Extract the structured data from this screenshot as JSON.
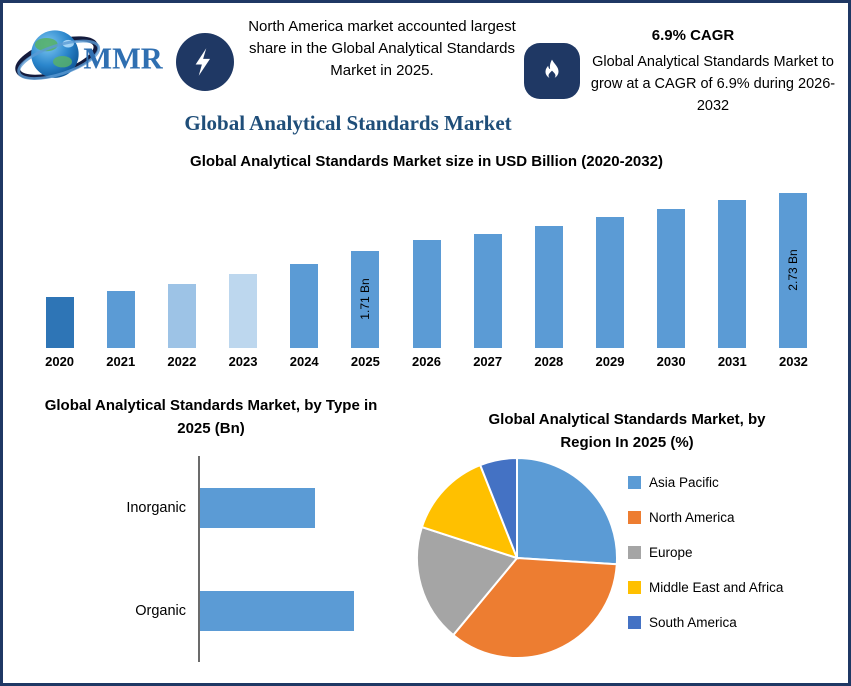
{
  "colors": {
    "navy": "#1f3864",
    "title_blue": "#1f4e79",
    "bar_blue": "#5b9bd5"
  },
  "header": {
    "logo": {
      "text": "MMR"
    },
    "highlight_icon": "lightning-icon",
    "highlight_text": "North America market accounted largest share in the Global Analytical Standards Market in 2025.",
    "title": "Global Analytical Standards Market",
    "cagr_icon": "flame-icon",
    "cagr_headline": "6.9% CAGR",
    "cagr_text": "Global Analytical Standards Market to grow at a CAGR of 6.9% during 2026-2032"
  },
  "chart_data": [
    {
      "id": "market-size-bars",
      "type": "bar",
      "title": "Global Analytical Standards Market size in USD Billion (2020-2032)",
      "categories": [
        "2020",
        "2021",
        "2022",
        "2023",
        "2024",
        "2025",
        "2026",
        "2027",
        "2028",
        "2029",
        "2030",
        "2031",
        "2032"
      ],
      "values": [
        0.9,
        1.0,
        1.12,
        1.3,
        1.48,
        1.71,
        1.9,
        2.0,
        2.15,
        2.3,
        2.45,
        2.6,
        2.73
      ],
      "unit": "USD Billion",
      "ylim": [
        0,
        2.9
      ],
      "bar_colors": [
        "#2e75b6",
        "#5b9bd5",
        "#9dc3e6",
        "#bdd7ee",
        "#5b9bd5",
        "#5b9bd5",
        "#5b9bd5",
        "#5b9bd5",
        "#5b9bd5",
        "#5b9bd5",
        "#5b9bd5",
        "#5b9bd5",
        "#5b9bd5"
      ],
      "data_labels": {
        "2025": "1.71 Bn",
        "2032": "2.73 Bn"
      },
      "grid": false,
      "legend": "none"
    },
    {
      "id": "type-bars",
      "type": "bar",
      "orientation": "horizontal",
      "title": "Global Analytical Standards Market, by Type in 2025 (Bn)",
      "categories": [
        "Inorganic",
        "Organic"
      ],
      "values": [
        0.73,
        0.98
      ],
      "xlim": [
        0,
        1.3
      ],
      "bar_color": "#5b9bd5",
      "grid": false,
      "legend": "none"
    },
    {
      "id": "region-pie",
      "type": "pie",
      "title": "Global Analytical Standards Market, by Region In 2025 (%)",
      "labels": [
        "Asia Pacific",
        "North America",
        "Europe",
        "Middle East and Africa",
        "South America"
      ],
      "values": [
        26,
        35,
        19,
        14,
        6
      ],
      "colors": [
        "#5b9bd5",
        "#ed7d31",
        "#a5a5a5",
        "#ffc000",
        "#4472c4"
      ],
      "legend_position": "right",
      "start_angle_deg": -90,
      "direction": "clockwise"
    }
  ]
}
